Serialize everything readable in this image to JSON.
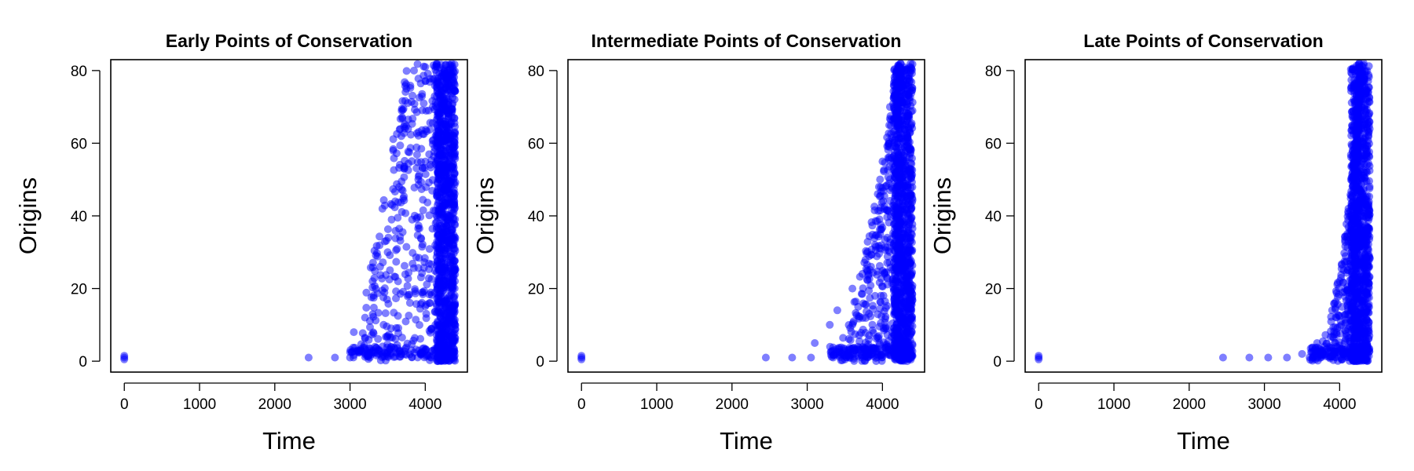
{
  "chart_data": [
    {
      "type": "scatter",
      "title": "Early Points of Conservation",
      "xlabel": "Time",
      "ylabel": "Origins",
      "xlim": [
        -180,
        4560
      ],
      "ylim": [
        -3,
        83
      ],
      "xticks": [
        0,
        1000,
        2000,
        3000,
        4000
      ],
      "yticks": [
        0,
        20,
        40,
        60,
        80
      ],
      "color": "#0000ff",
      "spread": "early",
      "points": [
        [
          0,
          1
        ],
        [
          0,
          0.5
        ],
        [
          0,
          1.5
        ],
        [
          2450,
          1
        ],
        [
          2800,
          1
        ],
        [
          3000,
          1
        ],
        [
          3050,
          8
        ],
        [
          3100,
          3
        ],
        [
          3200,
          12
        ],
        [
          3300,
          22
        ],
        [
          3400,
          26
        ],
        [
          3500,
          30
        ],
        [
          3600,
          44
        ],
        [
          3700,
          47
        ],
        [
          3750,
          75
        ],
        [
          3850,
          80
        ],
        [
          4000,
          81
        ],
        [
          4100,
          70
        ]
      ]
    },
    {
      "type": "scatter",
      "title": "Intermediate Points of Conservation",
      "xlabel": "Time",
      "ylabel": "Origins",
      "xlim": [
        -180,
        4560
      ],
      "ylim": [
        -3,
        83
      ],
      "xticks": [
        0,
        1000,
        2000,
        3000,
        4000
      ],
      "yticks": [
        0,
        20,
        40,
        60,
        80
      ],
      "color": "#0000ff",
      "spread": "intermediate",
      "points": [
        [
          0,
          1
        ],
        [
          0,
          0.5
        ],
        [
          0,
          1.5
        ],
        [
          2450,
          1
        ],
        [
          2800,
          1
        ],
        [
          3050,
          1
        ],
        [
          3100,
          5
        ],
        [
          3300,
          10
        ],
        [
          3400,
          14
        ],
        [
          3600,
          20
        ],
        [
          3800,
          25
        ],
        [
          3900,
          32
        ],
        [
          4000,
          55
        ],
        [
          4100,
          70
        ],
        [
          4200,
          80
        ]
      ]
    },
    {
      "type": "scatter",
      "title": "Late Points of Conservation",
      "xlabel": "Time",
      "ylabel": "Origins",
      "xlim": [
        -180,
        4560
      ],
      "ylim": [
        -3,
        83
      ],
      "xticks": [
        0,
        1000,
        2000,
        3000,
        4000
      ],
      "yticks": [
        0,
        20,
        40,
        60,
        80
      ],
      "color": "#0000ff",
      "spread": "late",
      "points": [
        [
          0,
          1
        ],
        [
          0,
          0.5
        ],
        [
          0,
          1.5
        ],
        [
          2450,
          1
        ],
        [
          2800,
          1
        ],
        [
          3050,
          1
        ],
        [
          3300,
          1
        ],
        [
          3500,
          2
        ],
        [
          3700,
          5
        ],
        [
          3900,
          14
        ],
        [
          4000,
          22
        ],
        [
          4100,
          35
        ],
        [
          4200,
          60
        ],
        [
          4300,
          80
        ]
      ]
    }
  ]
}
